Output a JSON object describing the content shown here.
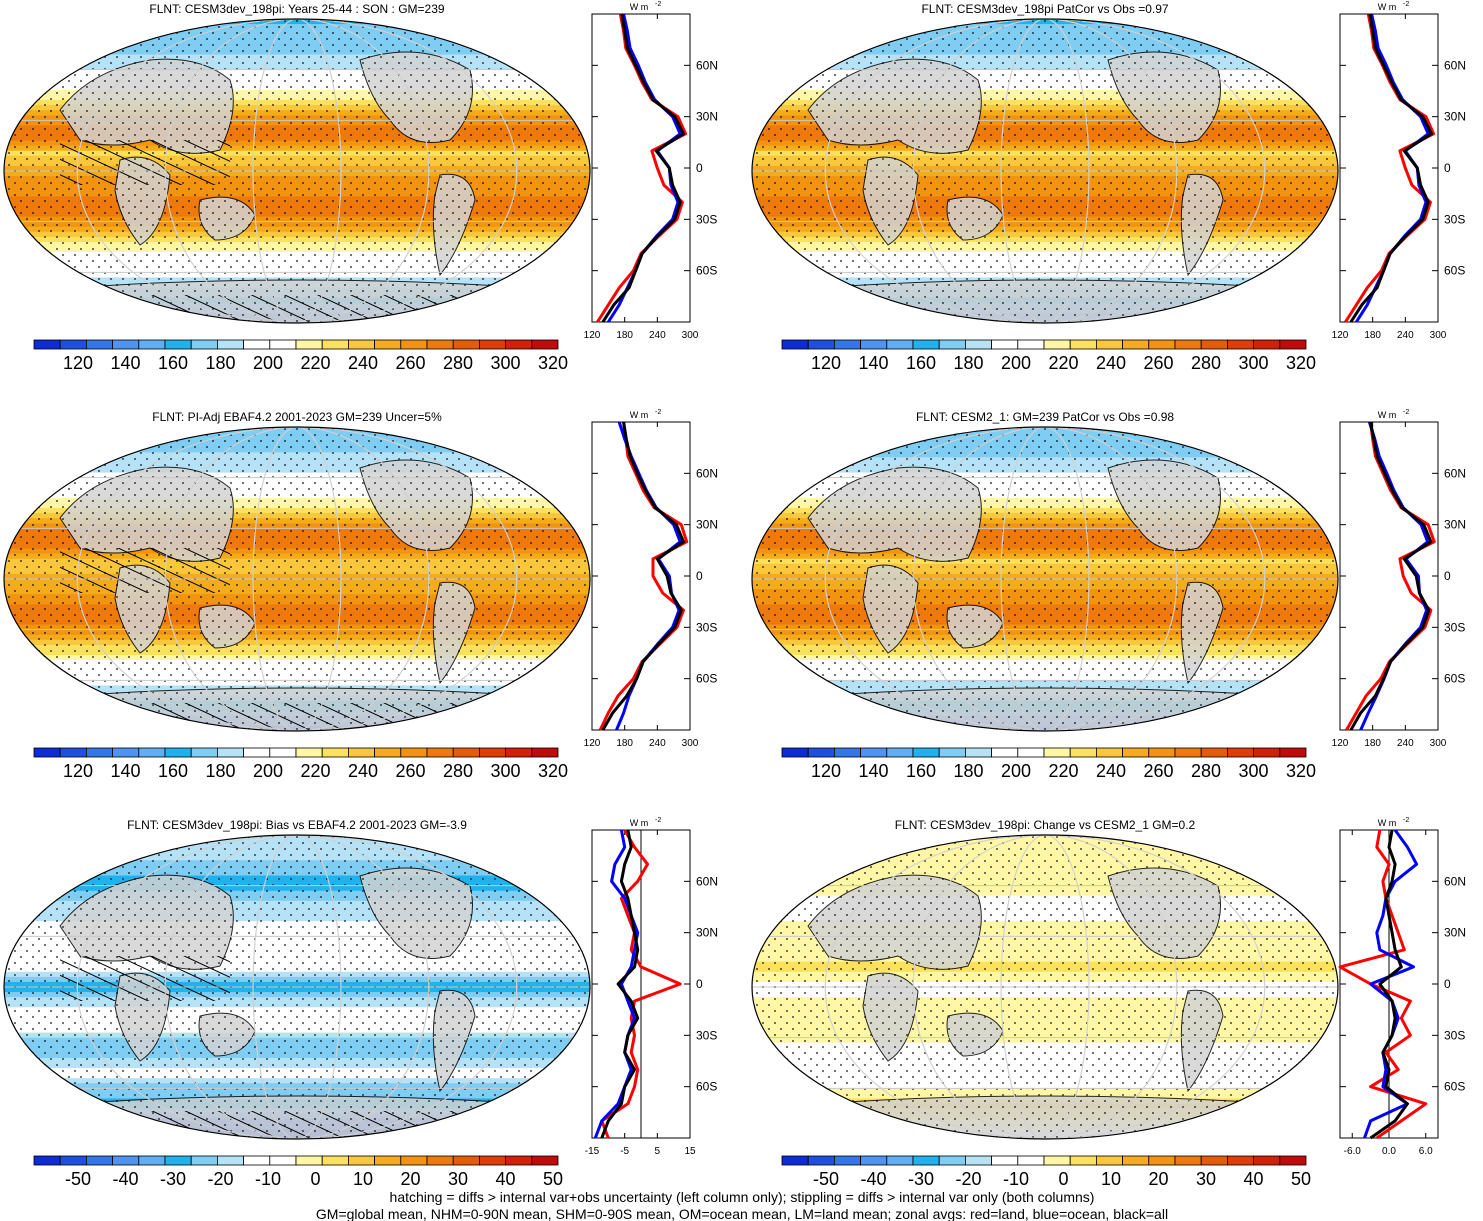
{
  "colors": {
    "abs_scale": [
      "#0d2bd9",
      "#1f4fe0",
      "#3575e8",
      "#4f93ef",
      "#62aef3",
      "#1fb3ee",
      "#7fcdf3",
      "#b5e2f7",
      "#ffffff",
      "#ffffff",
      "#fff7a6",
      "#fbe15c",
      "#f8c73c",
      "#f5ac1c",
      "#f29410",
      "#ef7a0c",
      "#e85a0b",
      "#e03b0a",
      "#d41f09",
      "#c20a0a"
    ],
    "diff_scale": [
      "#0d2bd9",
      "#1f4fe0",
      "#3575e8",
      "#4f93ef",
      "#62aef3",
      "#1fb3ee",
      "#7fcdf3",
      "#b5e2f7",
      "#ffffff",
      "#ffffff",
      "#fff7a6",
      "#fbe15c",
      "#f8c73c",
      "#f5ac1c",
      "#f29410",
      "#ef7a0c",
      "#e85a0b",
      "#e03b0a",
      "#d41f09",
      "#c20a0a"
    ],
    "land": "red",
    "ocean": "blue",
    "all": "black",
    "continent_fill": "#d3d3d3"
  },
  "panels": [
    {
      "title": "FLNT: CESM3dev_198pi: Years 25-44 : SON : GM=239",
      "kind": "abs",
      "colorbar_labels": [
        "120",
        "140",
        "160",
        "180",
        "200",
        "220",
        "240",
        "260",
        "280",
        "300",
        "320"
      ]
    },
    {
      "title": "FLNT: CESM3dev_198pi PatCor vs Obs =0.97",
      "kind": "abs",
      "colorbar_labels": [
        "120",
        "140",
        "160",
        "180",
        "200",
        "220",
        "240",
        "260",
        "280",
        "300",
        "320"
      ]
    },
    {
      "title": "FLNT: PI-Adj EBAF4.2 2001-2023 GM=239 Uncer=5%",
      "kind": "abs",
      "colorbar_labels": [
        "120",
        "140",
        "160",
        "180",
        "200",
        "220",
        "240",
        "260",
        "280",
        "300",
        "320"
      ]
    },
    {
      "title": "FLNT: CESM2_1: GM=239 PatCor vs Obs =0.98",
      "kind": "abs",
      "colorbar_labels": [
        "120",
        "140",
        "160",
        "180",
        "200",
        "220",
        "240",
        "260",
        "280",
        "300",
        "320"
      ]
    },
    {
      "title": "FLNT: CESM3dev_198pi: Bias vs EBAF4.2 2001-2023  GM=-3.9",
      "kind": "diff",
      "colorbar_labels": [
        "-50",
        "-40",
        "-30",
        "-20",
        "-10",
        "0",
        "10",
        "20",
        "30",
        "40",
        "50"
      ]
    },
    {
      "title": "FLNT: CESM3dev_198pi: Change vs CESM2_1 GM=0.2",
      "kind": "diff",
      "colorbar_labels": [
        "-50",
        "-40",
        "-30",
        "-20",
        "-10",
        "0",
        "10",
        "20",
        "30",
        "40",
        "50"
      ]
    }
  ],
  "zonal": {
    "units": "W m",
    "units_sup": "-2",
    "lat_labels": [
      "60N",
      "30N",
      "0",
      "30S",
      "60S"
    ],
    "abs_xticks": [
      "120",
      "180",
      "240",
      "300"
    ],
    "diff_left_xticks": [
      "-15",
      "-5",
      "5",
      "15"
    ],
    "diff_right_xticks": [
      "-6.0",
      "0.0",
      "6.0"
    ]
  },
  "footer": {
    "line1": "hatching = diffs > internal var+obs uncertainty (left column only); stippling = diffs > internal var only (both columns)",
    "line2": "GM=global mean, NHM=0-90N mean, SHM=0-90S mean, OM=ocean mean, LM=land mean; zonal avgs: red=land, blue=ocean, black=all"
  },
  "chart_data": [
    {
      "type": "line",
      "title": "FLNT: CESM3dev_198pi: Years 25-44 : SON : GM=239",
      "xlim": [
        120,
        300
      ],
      "ylim": [
        -90,
        90
      ],
      "series": [
        {
          "name": "all",
          "lat": [
            90,
            80,
            70,
            60,
            50,
            40,
            30,
            20,
            10,
            0,
            -10,
            -20,
            -30,
            -40,
            -50,
            -60,
            -70,
            -80,
            -90
          ],
          "values": [
            175,
            180,
            185,
            200,
            215,
            232,
            272,
            288,
            238,
            262,
            268,
            282,
            272,
            240,
            212,
            200,
            188,
            160,
            140
          ]
        },
        {
          "name": "ocean",
          "lat": [
            90,
            80,
            70,
            60,
            50,
            40,
            30,
            20,
            10,
            0,
            -10,
            -20,
            -30,
            -40,
            -50,
            -60,
            -70,
            -80,
            -90
          ],
          "values": [
            178,
            185,
            190,
            205,
            218,
            235,
            268,
            282,
            240,
            262,
            265,
            278,
            268,
            238,
            212,
            200,
            185,
            170,
            150
          ]
        },
        {
          "name": "land",
          "lat": [
            90,
            80,
            70,
            60,
            50,
            40,
            30,
            20,
            10,
            0,
            -10,
            -20,
            -30,
            -40,
            -50,
            -60,
            -70,
            -80,
            -90
          ],
          "values": [
            172,
            178,
            182,
            198,
            212,
            230,
            278,
            292,
            230,
            240,
            252,
            286,
            276,
            242,
            210,
            196,
            170,
            150,
            130
          ]
        }
      ]
    },
    {
      "type": "line",
      "title": "FLNT: CESM3dev_198pi PatCor vs Obs =0.97",
      "xlim": [
        120,
        300
      ],
      "ylim": [
        -90,
        90
      ],
      "series": [
        {
          "name": "all",
          "lat": [
            90,
            80,
            70,
            60,
            50,
            40,
            30,
            20,
            10,
            0,
            -10,
            -20,
            -30,
            -40,
            -50,
            -60,
            -70,
            -80,
            -90
          ],
          "values": [
            175,
            180,
            185,
            200,
            215,
            232,
            272,
            288,
            238,
            262,
            268,
            282,
            272,
            240,
            212,
            200,
            188,
            160,
            140
          ]
        },
        {
          "name": "ocean",
          "lat": [
            90,
            80,
            70,
            60,
            50,
            40,
            30,
            20,
            10,
            0,
            -10,
            -20,
            -30,
            -40,
            -50,
            -60,
            -70,
            -80,
            -90
          ],
          "values": [
            178,
            185,
            190,
            205,
            218,
            235,
            268,
            282,
            240,
            262,
            265,
            278,
            268,
            238,
            212,
            200,
            185,
            170,
            150
          ]
        },
        {
          "name": "land",
          "lat": [
            90,
            80,
            70,
            60,
            50,
            40,
            30,
            20,
            10,
            0,
            -10,
            -20,
            -30,
            -40,
            -50,
            -60,
            -70,
            -80,
            -90
          ],
          "values": [
            172,
            178,
            182,
            198,
            212,
            230,
            278,
            292,
            230,
            240,
            252,
            286,
            276,
            242,
            210,
            196,
            170,
            150,
            130
          ]
        }
      ]
    },
    {
      "type": "line",
      "title": "FLNT: PI-Adj EBAF4.2 2001-2023 GM=239 Uncer=5%",
      "xlim": [
        120,
        300
      ],
      "ylim": [
        -90,
        90
      ],
      "series": [
        {
          "name": "all",
          "lat": [
            90,
            80,
            70,
            60,
            50,
            40,
            30,
            20,
            10,
            0,
            -10,
            -20,
            -30,
            -40,
            -50,
            -60,
            -70,
            -80,
            -90
          ],
          "values": [
            178,
            183,
            190,
            203,
            218,
            236,
            275,
            288,
            240,
            258,
            265,
            284,
            272,
            242,
            214,
            202,
            184,
            158,
            140
          ]
        },
        {
          "name": "ocean",
          "lat": [
            90,
            80,
            70,
            60,
            50,
            40,
            30,
            20,
            10,
            0,
            -10,
            -20,
            -30,
            -40,
            -50,
            -60,
            -70,
            -80,
            -90
          ],
          "values": [
            170,
            180,
            192,
            206,
            220,
            238,
            270,
            282,
            242,
            262,
            266,
            280,
            268,
            240,
            214,
            202,
            188,
            178,
            165
          ]
        },
        {
          "name": "land",
          "lat": [
            90,
            80,
            70,
            60,
            50,
            40,
            30,
            20,
            10,
            0,
            -10,
            -20,
            -30,
            -40,
            -50,
            -60,
            -70,
            -80,
            -90
          ],
          "values": [
            178,
            182,
            186,
            200,
            214,
            234,
            284,
            294,
            232,
            232,
            250,
            288,
            276,
            244,
            212,
            196,
            168,
            150,
            135
          ]
        }
      ]
    },
    {
      "type": "line",
      "title": "FLNT: CESM2_1: GM=239 PatCor vs Obs =0.98",
      "xlim": [
        120,
        300
      ],
      "ylim": [
        -90,
        90
      ],
      "series": [
        {
          "name": "all",
          "lat": [
            90,
            80,
            70,
            60,
            50,
            40,
            30,
            20,
            10,
            0,
            -10,
            -20,
            -30,
            -40,
            -50,
            -60,
            -70,
            -80,
            -90
          ],
          "values": [
            176,
            182,
            188,
            202,
            216,
            234,
            274,
            287,
            238,
            260,
            266,
            283,
            272,
            241,
            213,
            200,
            185,
            158,
            140
          ]
        },
        {
          "name": "ocean",
          "lat": [
            90,
            80,
            70,
            60,
            50,
            40,
            30,
            20,
            10,
            0,
            -10,
            -20,
            -30,
            -40,
            -50,
            -60,
            -70,
            -80,
            -90
          ],
          "values": [
            174,
            184,
            192,
            206,
            219,
            236,
            269,
            281,
            241,
            264,
            266,
            279,
            268,
            239,
            213,
            201,
            187,
            172,
            158
          ]
        },
        {
          "name": "land",
          "lat": [
            90,
            80,
            70,
            60,
            50,
            40,
            30,
            20,
            10,
            0,
            -10,
            -20,
            -30,
            -40,
            -50,
            -60,
            -70,
            -80,
            -90
          ],
          "values": [
            176,
            180,
            185,
            199,
            213,
            232,
            282,
            293,
            230,
            236,
            251,
            287,
            276,
            243,
            211,
            195,
            168,
            150,
            132
          ]
        }
      ]
    },
    {
      "type": "line",
      "title": "FLNT: CESM3dev_198pi: Bias vs EBAF4.2 2001-2023  GM=-3.9",
      "xlim": [
        -15,
        15
      ],
      "ylim": [
        -90,
        90
      ],
      "series": [
        {
          "name": "all",
          "lat": [
            90,
            80,
            70,
            60,
            50,
            40,
            30,
            20,
            10,
            0,
            -10,
            -20,
            -30,
            -40,
            -50,
            -60,
            -70,
            -80,
            -90
          ],
          "values": [
            -4,
            -3,
            -5,
            -6,
            -4,
            -3,
            -2,
            -1,
            -2,
            -7,
            -3,
            -1,
            -4,
            -5,
            -2,
            -5,
            -6,
            -10,
            -12
          ]
        },
        {
          "name": "ocean",
          "lat": [
            90,
            80,
            70,
            60,
            50,
            40,
            30,
            20,
            10,
            0,
            -10,
            -20,
            -30,
            -40,
            -50,
            -60,
            -70,
            -80,
            -90
          ],
          "values": [
            -6,
            -5,
            -8,
            -9,
            -5,
            -3,
            -1,
            -2,
            -3,
            -6,
            -4,
            -2,
            -4,
            -5,
            -3,
            -5,
            -7,
            -12,
            -14
          ]
        },
        {
          "name": "land",
          "lat": [
            90,
            80,
            70,
            60,
            50,
            40,
            30,
            20,
            10,
            0,
            -10,
            -20,
            -30,
            -40,
            -50,
            -60,
            -70,
            -80,
            -90
          ],
          "values": [
            -5,
            -2,
            2,
            -1,
            -6,
            -4,
            -2,
            -3,
            0,
            12,
            -2,
            -3,
            -2,
            -3,
            -1,
            -2,
            -4,
            -12,
            -10
          ]
        }
      ]
    },
    {
      "type": "line",
      "title": "FLNT: CESM3dev_198pi: Change vs CESM2_1 GM=0.2",
      "xlim": [
        -8,
        8
      ],
      "ylim": [
        -90,
        90
      ],
      "series": [
        {
          "name": "all",
          "lat": [
            90,
            80,
            70,
            60,
            50,
            40,
            30,
            20,
            10,
            0,
            -10,
            -20,
            -30,
            -40,
            -50,
            -60,
            -70,
            -80,
            -90
          ],
          "values": [
            0.5,
            0.0,
            1.0,
            0.5,
            -0.5,
            0.0,
            0.5,
            1.0,
            2.0,
            -1.5,
            0.5,
            1.0,
            0.5,
            -1.0,
            0.0,
            -0.5,
            3.0,
            1.0,
            -3.0
          ]
        },
        {
          "name": "ocean",
          "lat": [
            90,
            80,
            70,
            60,
            50,
            40,
            30,
            20,
            10,
            0,
            -10,
            -20,
            -30,
            -40,
            -50,
            -60,
            -70,
            -80,
            -90
          ],
          "values": [
            1.0,
            3.0,
            4.5,
            1.0,
            -0.5,
            -1.0,
            -2.0,
            -1.5,
            4.0,
            -3.0,
            0.5,
            1.5,
            0.5,
            -1.0,
            -0.5,
            -1.0,
            3.0,
            -3.0,
            -4.0
          ]
        },
        {
          "name": "land",
          "lat": [
            90,
            80,
            70,
            60,
            50,
            40,
            30,
            20,
            10,
            0,
            -10,
            -20,
            -30,
            -40,
            -50,
            -60,
            -70,
            -80,
            -90
          ],
          "values": [
            -1.5,
            -2.0,
            0.0,
            -1.0,
            -0.5,
            0.5,
            1.5,
            2.5,
            -8.0,
            -3.0,
            3.5,
            2.0,
            3.5,
            -0.5,
            1.5,
            -3.0,
            6.0,
            2.0,
            -2.0
          ]
        }
      ]
    }
  ]
}
